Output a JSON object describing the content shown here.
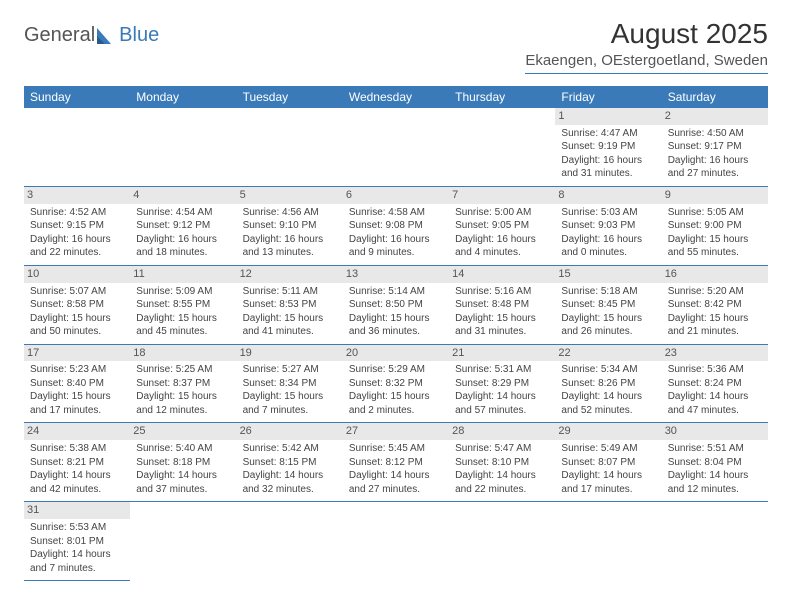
{
  "logo": {
    "general": "General",
    "blue": "Blue"
  },
  "title": "August 2025",
  "location": "Ekaengen, OEstergoetland, Sweden",
  "header_bg": "#3a7ab8",
  "header_fg": "#ffffff",
  "daynum_bg": "#e8e8e8",
  "border_color": "#3a7ab8",
  "weekdays": [
    "Sunday",
    "Monday",
    "Tuesday",
    "Wednesday",
    "Thursday",
    "Friday",
    "Saturday"
  ],
  "weeks": [
    [
      null,
      null,
      null,
      null,
      null,
      {
        "n": "1",
        "sr": "Sunrise: 4:47 AM",
        "ss": "Sunset: 9:19 PM",
        "dl": "Daylight: 16 hours and 31 minutes."
      },
      {
        "n": "2",
        "sr": "Sunrise: 4:50 AM",
        "ss": "Sunset: 9:17 PM",
        "dl": "Daylight: 16 hours and 27 minutes."
      }
    ],
    [
      {
        "n": "3",
        "sr": "Sunrise: 4:52 AM",
        "ss": "Sunset: 9:15 PM",
        "dl": "Daylight: 16 hours and 22 minutes."
      },
      {
        "n": "4",
        "sr": "Sunrise: 4:54 AM",
        "ss": "Sunset: 9:12 PM",
        "dl": "Daylight: 16 hours and 18 minutes."
      },
      {
        "n": "5",
        "sr": "Sunrise: 4:56 AM",
        "ss": "Sunset: 9:10 PM",
        "dl": "Daylight: 16 hours and 13 minutes."
      },
      {
        "n": "6",
        "sr": "Sunrise: 4:58 AM",
        "ss": "Sunset: 9:08 PM",
        "dl": "Daylight: 16 hours and 9 minutes."
      },
      {
        "n": "7",
        "sr": "Sunrise: 5:00 AM",
        "ss": "Sunset: 9:05 PM",
        "dl": "Daylight: 16 hours and 4 minutes."
      },
      {
        "n": "8",
        "sr": "Sunrise: 5:03 AM",
        "ss": "Sunset: 9:03 PM",
        "dl": "Daylight: 16 hours and 0 minutes."
      },
      {
        "n": "9",
        "sr": "Sunrise: 5:05 AM",
        "ss": "Sunset: 9:00 PM",
        "dl": "Daylight: 15 hours and 55 minutes."
      }
    ],
    [
      {
        "n": "10",
        "sr": "Sunrise: 5:07 AM",
        "ss": "Sunset: 8:58 PM",
        "dl": "Daylight: 15 hours and 50 minutes."
      },
      {
        "n": "11",
        "sr": "Sunrise: 5:09 AM",
        "ss": "Sunset: 8:55 PM",
        "dl": "Daylight: 15 hours and 45 minutes."
      },
      {
        "n": "12",
        "sr": "Sunrise: 5:11 AM",
        "ss": "Sunset: 8:53 PM",
        "dl": "Daylight: 15 hours and 41 minutes."
      },
      {
        "n": "13",
        "sr": "Sunrise: 5:14 AM",
        "ss": "Sunset: 8:50 PM",
        "dl": "Daylight: 15 hours and 36 minutes."
      },
      {
        "n": "14",
        "sr": "Sunrise: 5:16 AM",
        "ss": "Sunset: 8:48 PM",
        "dl": "Daylight: 15 hours and 31 minutes."
      },
      {
        "n": "15",
        "sr": "Sunrise: 5:18 AM",
        "ss": "Sunset: 8:45 PM",
        "dl": "Daylight: 15 hours and 26 minutes."
      },
      {
        "n": "16",
        "sr": "Sunrise: 5:20 AM",
        "ss": "Sunset: 8:42 PM",
        "dl": "Daylight: 15 hours and 21 minutes."
      }
    ],
    [
      {
        "n": "17",
        "sr": "Sunrise: 5:23 AM",
        "ss": "Sunset: 8:40 PM",
        "dl": "Daylight: 15 hours and 17 minutes."
      },
      {
        "n": "18",
        "sr": "Sunrise: 5:25 AM",
        "ss": "Sunset: 8:37 PM",
        "dl": "Daylight: 15 hours and 12 minutes."
      },
      {
        "n": "19",
        "sr": "Sunrise: 5:27 AM",
        "ss": "Sunset: 8:34 PM",
        "dl": "Daylight: 15 hours and 7 minutes."
      },
      {
        "n": "20",
        "sr": "Sunrise: 5:29 AM",
        "ss": "Sunset: 8:32 PM",
        "dl": "Daylight: 15 hours and 2 minutes."
      },
      {
        "n": "21",
        "sr": "Sunrise: 5:31 AM",
        "ss": "Sunset: 8:29 PM",
        "dl": "Daylight: 14 hours and 57 minutes."
      },
      {
        "n": "22",
        "sr": "Sunrise: 5:34 AM",
        "ss": "Sunset: 8:26 PM",
        "dl": "Daylight: 14 hours and 52 minutes."
      },
      {
        "n": "23",
        "sr": "Sunrise: 5:36 AM",
        "ss": "Sunset: 8:24 PM",
        "dl": "Daylight: 14 hours and 47 minutes."
      }
    ],
    [
      {
        "n": "24",
        "sr": "Sunrise: 5:38 AM",
        "ss": "Sunset: 8:21 PM",
        "dl": "Daylight: 14 hours and 42 minutes."
      },
      {
        "n": "25",
        "sr": "Sunrise: 5:40 AM",
        "ss": "Sunset: 8:18 PM",
        "dl": "Daylight: 14 hours and 37 minutes."
      },
      {
        "n": "26",
        "sr": "Sunrise: 5:42 AM",
        "ss": "Sunset: 8:15 PM",
        "dl": "Daylight: 14 hours and 32 minutes."
      },
      {
        "n": "27",
        "sr": "Sunrise: 5:45 AM",
        "ss": "Sunset: 8:12 PM",
        "dl": "Daylight: 14 hours and 27 minutes."
      },
      {
        "n": "28",
        "sr": "Sunrise: 5:47 AM",
        "ss": "Sunset: 8:10 PM",
        "dl": "Daylight: 14 hours and 22 minutes."
      },
      {
        "n": "29",
        "sr": "Sunrise: 5:49 AM",
        "ss": "Sunset: 8:07 PM",
        "dl": "Daylight: 14 hours and 17 minutes."
      },
      {
        "n": "30",
        "sr": "Sunrise: 5:51 AM",
        "ss": "Sunset: 8:04 PM",
        "dl": "Daylight: 14 hours and 12 minutes."
      }
    ],
    [
      {
        "n": "31",
        "sr": "Sunrise: 5:53 AM",
        "ss": "Sunset: 8:01 PM",
        "dl": "Daylight: 14 hours and 7 minutes."
      },
      null,
      null,
      null,
      null,
      null,
      null
    ]
  ]
}
